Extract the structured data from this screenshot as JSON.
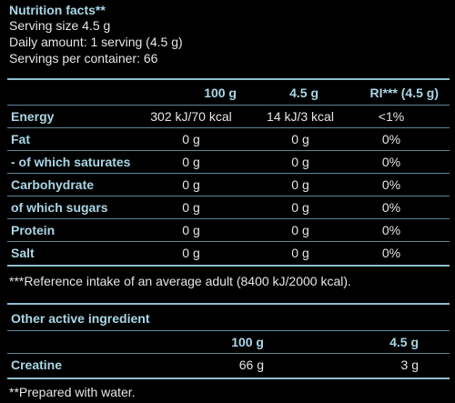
{
  "header": {
    "title": "Nutrition facts**",
    "serving_size": "Serving size 4.5 g",
    "daily_amount": "Daily amount: 1 serving (4.5 g)",
    "servings_per_container": "Servings per container: 66"
  },
  "table": {
    "columns": [
      "100 g",
      "4.5 g",
      "RI*** (4.5 g)"
    ],
    "rows": [
      {
        "label": "Energy",
        "per100": "302 kJ/70 kcal",
        "per_serving": "14 kJ/3 kcal",
        "ri": "<1%"
      },
      {
        "label": "Fat",
        "per100": "0 g",
        "per_serving": "0 g",
        "ri": "0%"
      },
      {
        "label": "- of which saturates",
        "per100": "0 g",
        "per_serving": "0 g",
        "ri": "0%"
      },
      {
        "label": "Carbohydrate",
        "per100": "0 g",
        "per_serving": "0 g",
        "ri": "0%"
      },
      {
        "label": "of which sugars",
        "per100": "0 g",
        "per_serving": "0 g",
        "ri": "0%"
      },
      {
        "label": "Protein",
        "per100": "0 g",
        "per_serving": "0 g",
        "ri": "0%"
      },
      {
        "label": "Salt",
        "per100": "0 g",
        "per_serving": "0 g",
        "ri": "0%"
      }
    ],
    "footnote": "***Reference intake of an average adult (8400 kJ/2000 kcal)."
  },
  "active": {
    "heading": "Other active ingredient",
    "columns": [
      "100 g",
      "4.5 g"
    ],
    "rows": [
      {
        "label": "Creatine",
        "per100": "66 g",
        "per_serving": "3 g"
      }
    ]
  },
  "footer_note": "**Prepared with water."
}
